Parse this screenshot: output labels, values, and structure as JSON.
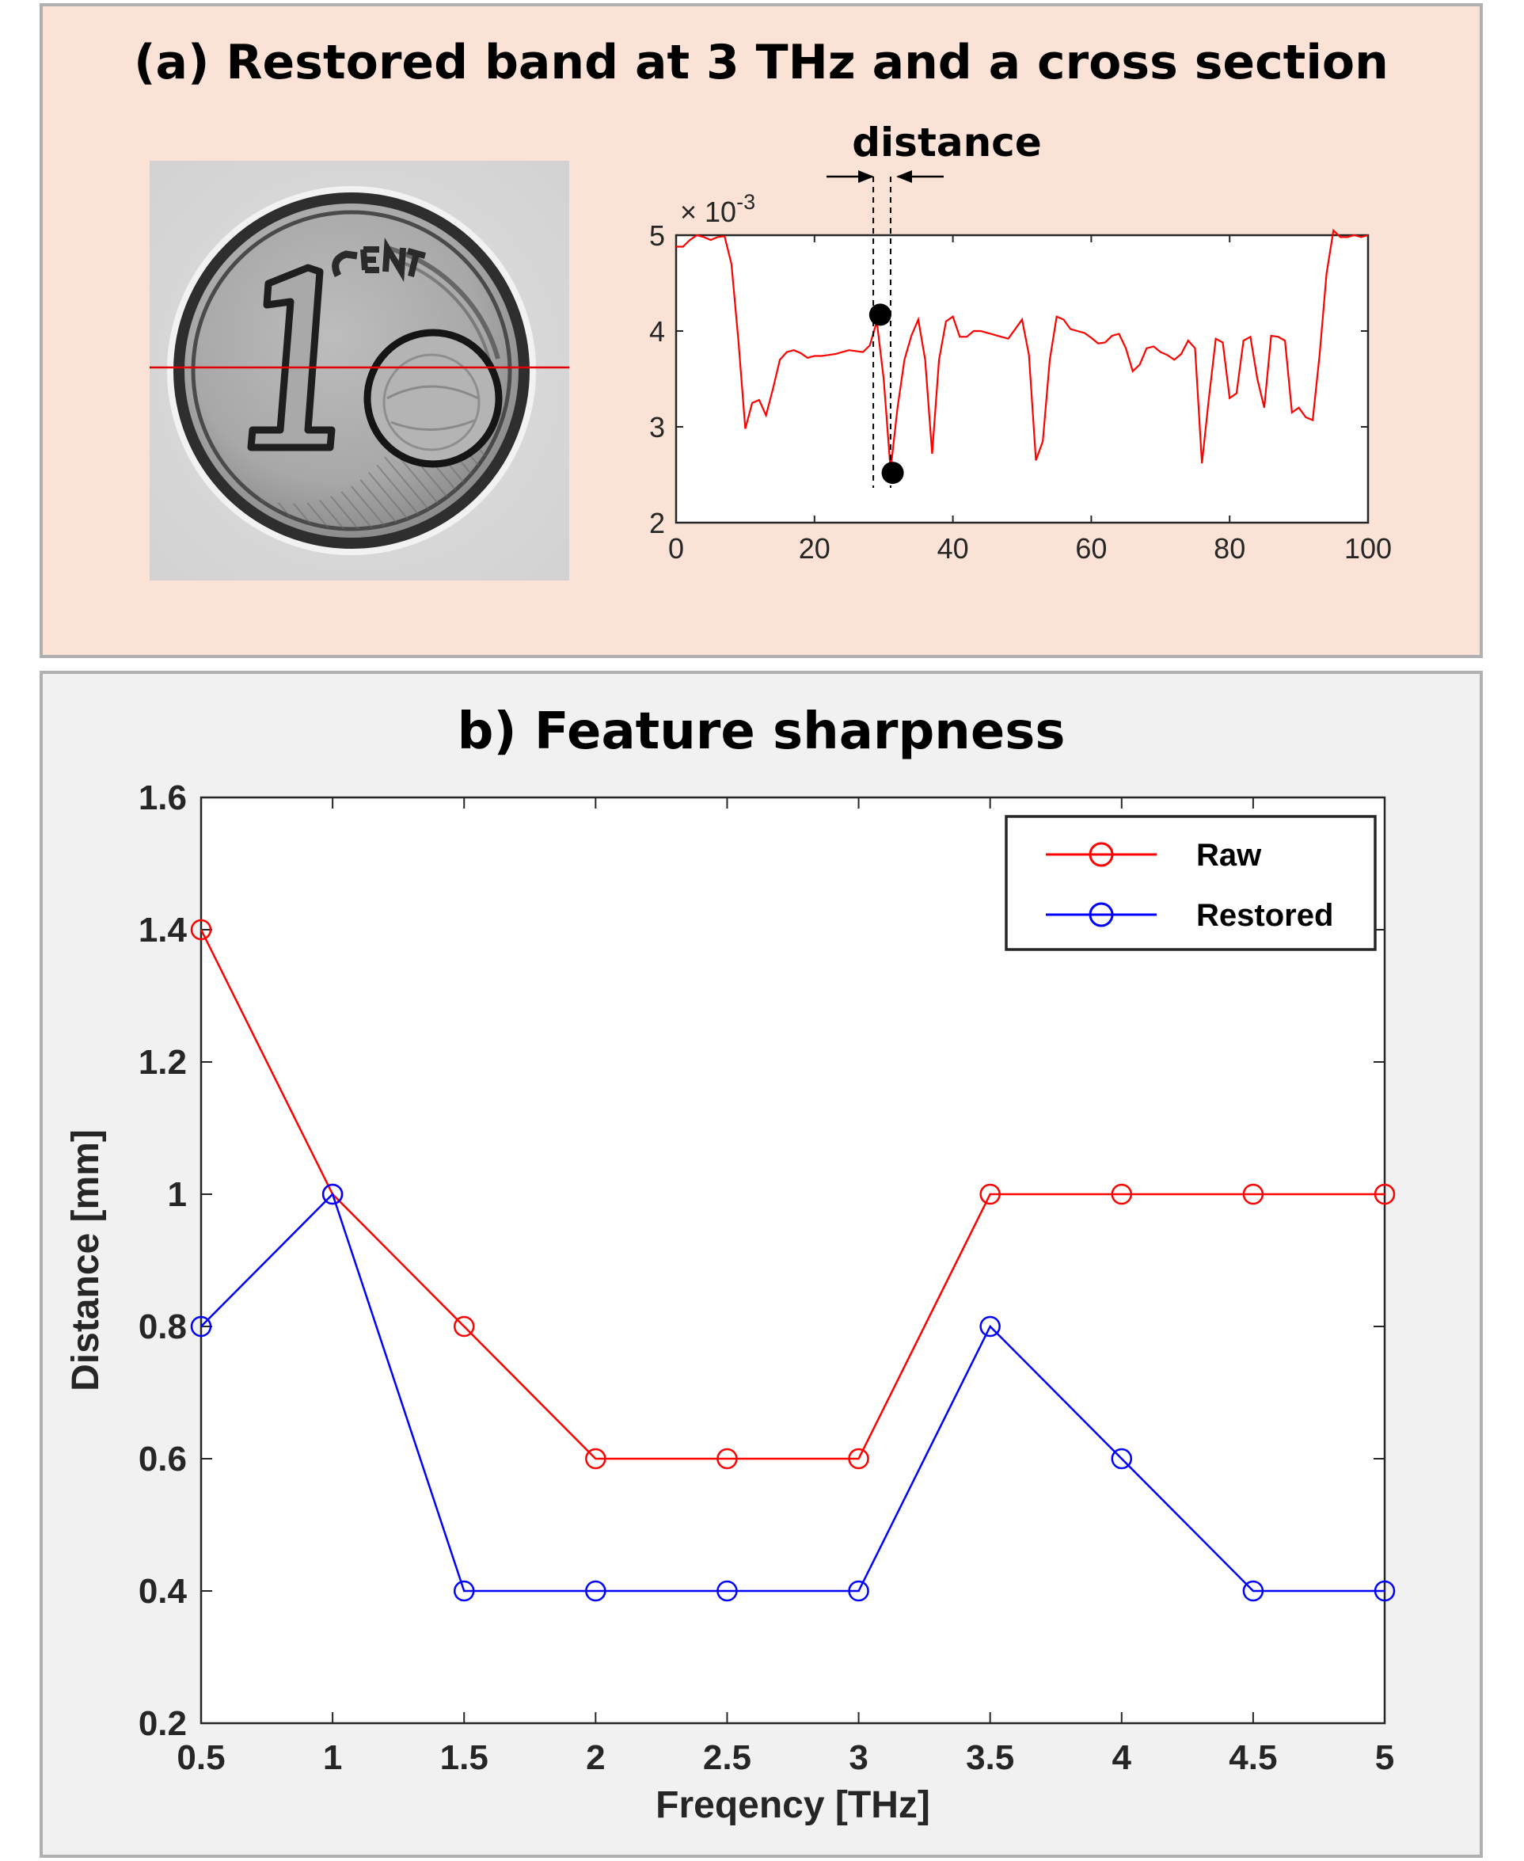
{
  "panel_a": {
    "title": "(a)  Restored band at 3 THz and a cross section",
    "annotation": "distance",
    "colors": {
      "background": "#fae3d6",
      "profile_line": "#ff0000",
      "coin_cut_line": "#e00000"
    }
  },
  "panel_b": {
    "title": "b) Feature sharpness",
    "colors": {
      "background": "#f1f1f1",
      "raw": "#ff0000",
      "restored": "#0000ff"
    }
  },
  "chart_data": [
    {
      "type": "line",
      "panel": "a",
      "y_exponent_label": "× 10",
      "y_exponent_power": "-3",
      "xlim": [
        0,
        100
      ],
      "ylim": [
        2,
        5
      ],
      "xticks": [
        0,
        20,
        40,
        60,
        80,
        100
      ],
      "yticks": [
        2,
        3,
        4,
        5
      ],
      "grid": false,
      "x": [
        0,
        1,
        2,
        3,
        4,
        5,
        6,
        7,
        8,
        9,
        10,
        11,
        12,
        13,
        14,
        15,
        16,
        17,
        18,
        19,
        20,
        21,
        22,
        23,
        24,
        25,
        26,
        27,
        28,
        29,
        30,
        31,
        32,
        33,
        34,
        35,
        36,
        37,
        38,
        39,
        40,
        41,
        42,
        43,
        44,
        45,
        46,
        47,
        48,
        49,
        50,
        51,
        52,
        53,
        54,
        55,
        56,
        57,
        58,
        59,
        60,
        61,
        62,
        63,
        64,
        65,
        66,
        67,
        68,
        69,
        70,
        71,
        72,
        73,
        74,
        75,
        76,
        77,
        78,
        79,
        80,
        81,
        82,
        83,
        84,
        85,
        86,
        87,
        88,
        89,
        90,
        91,
        92,
        93,
        94,
        95,
        96,
        97,
        98,
        99,
        100
      ],
      "y": [
        4.88,
        4.88,
        4.95,
        5.0,
        4.98,
        4.95,
        4.98,
        4.99,
        4.7,
        3.9,
        2.98,
        3.25,
        3.28,
        3.12,
        3.4,
        3.7,
        3.78,
        3.8,
        3.77,
        3.72,
        3.74,
        3.74,
        3.75,
        3.76,
        3.78,
        3.8,
        3.79,
        3.78,
        3.85,
        4.1,
        3.5,
        2.55,
        3.2,
        3.7,
        3.95,
        4.12,
        3.7,
        2.72,
        3.7,
        4.1,
        4.15,
        3.94,
        3.94,
        4.0,
        4.0,
        3.98,
        3.96,
        3.94,
        3.92,
        4.02,
        4.12,
        3.75,
        2.65,
        2.85,
        3.7,
        4.15,
        4.12,
        4.02,
        4.0,
        3.98,
        3.93,
        3.87,
        3.88,
        3.95,
        3.97,
        3.82,
        3.58,
        3.65,
        3.82,
        3.84,
        3.78,
        3.75,
        3.7,
        3.76,
        3.9,
        3.82,
        2.62,
        3.3,
        3.92,
        3.88,
        3.3,
        3.35,
        3.9,
        3.94,
        3.5,
        3.2,
        3.95,
        3.94,
        3.9,
        3.15,
        3.2,
        3.1,
        3.07,
        3.75,
        4.6,
        5.05,
        4.98,
        4.98,
        5.0,
        4.98,
        5.0
      ],
      "markers": [
        {
          "x": 29.5,
          "y": 4.17
        },
        {
          "x": 31.3,
          "y": 2.52
        }
      ],
      "distance_lines_x": [
        28.5,
        31.0
      ]
    },
    {
      "type": "line",
      "panel": "b",
      "xlabel": "Freqency [THz]",
      "ylabel": "Distance [mm]",
      "xlim": [
        0.5,
        5
      ],
      "ylim": [
        0.2,
        1.6
      ],
      "xticks": [
        "0.5",
        "1",
        "1.5",
        "2",
        "2.5",
        "3",
        "3.5",
        "4",
        "4.5",
        "5"
      ],
      "yticks": [
        "0.2",
        "0.4",
        "0.6",
        "0.8",
        "1",
        "1.2",
        "1.4",
        "1.6"
      ],
      "grid": false,
      "legend_position": "top-right",
      "x": [
        0.5,
        1,
        1.5,
        2,
        2.5,
        3,
        3.5,
        4,
        4.5,
        5
      ],
      "series": [
        {
          "name": "Raw",
          "color": "#ff0000",
          "marker": "circle",
          "values": [
            1.4,
            1.0,
            0.8,
            0.6,
            0.6,
            0.6,
            1.0,
            1.0,
            1.0,
            1.0
          ]
        },
        {
          "name": "Restored",
          "color": "#0000ff",
          "marker": "circle",
          "values": [
            0.8,
            1.0,
            0.4,
            0.4,
            0.4,
            0.4,
            0.8,
            0.6,
            0.4,
            0.4
          ]
        }
      ]
    }
  ]
}
